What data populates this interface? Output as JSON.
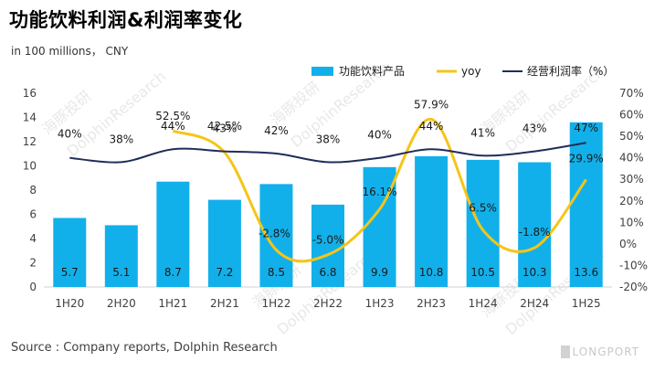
{
  "title": "功能饮料利润&利润率变化",
  "unit": "in 100 millions， CNY",
  "source": "Source : Company reports, Dolphin Research",
  "brand": "LONGPORT",
  "watermark": {
    "cn": "海豚投研",
    "en": "DolphinResearch"
  },
  "colors": {
    "bar": "#12B0EA",
    "yoy": "#F5C518",
    "margin": "#1F2D5A"
  },
  "chart_data": {
    "type": "bar",
    "categories": [
      "1H20",
      "2H20",
      "1H21",
      "2H21",
      "1H22",
      "2H22",
      "1H23",
      "2H23",
      "1H24",
      "2H24",
      "1H25"
    ],
    "series": [
      {
        "name": "功能饮料产品",
        "type": "bar",
        "axis": "left",
        "values": [
          5.7,
          5.1,
          8.7,
          7.2,
          8.5,
          6.8,
          9.9,
          10.8,
          10.5,
          10.3,
          13.6
        ],
        "labels": [
          "5.7",
          "5.1",
          "8.7",
          "7.2",
          "8.5",
          "6.8",
          "9.9",
          "10.8",
          "10.5",
          "10.3",
          "13.6"
        ]
      },
      {
        "name": "yoy",
        "type": "line",
        "axis": "right",
        "values": [
          null,
          null,
          52.5,
          42.5,
          -2.8,
          -5.0,
          16.1,
          57.9,
          6.5,
          -1.8,
          29.9
        ],
        "labels": [
          "",
          "",
          "52.5%",
          "42.5%",
          "-2.8%",
          "-5.0%",
          "16.1%",
          "57.9%",
          "6.5%",
          "-1.8%",
          "29.9%"
        ]
      },
      {
        "name": "经营利润率（%）",
        "type": "line",
        "axis": "right",
        "values": [
          40,
          38,
          44,
          43,
          42,
          38,
          40,
          44,
          41,
          43,
          47
        ],
        "labels": [
          "40%",
          "38%",
          "44%",
          "43%",
          "42%",
          "38%",
          "40%",
          "44%",
          "41%",
          "43%",
          "47%"
        ]
      }
    ],
    "y_left": {
      "min": 0,
      "max": 16,
      "ticks": [
        "0",
        "2",
        "4",
        "6",
        "8",
        "10",
        "12",
        "14",
        "16"
      ]
    },
    "y_right": {
      "min": -20,
      "max": 70,
      "ticks": [
        "-20%",
        "-10%",
        "0%",
        "10%",
        "20%",
        "30%",
        "40%",
        "50%",
        "60%",
        "70%"
      ]
    },
    "legend_position": "top-right",
    "grid": false
  }
}
